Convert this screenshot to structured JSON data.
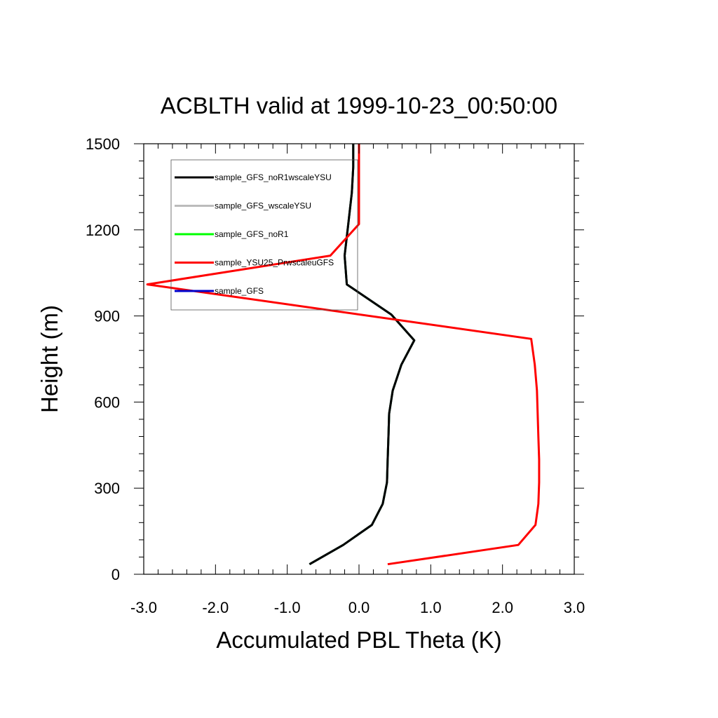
{
  "chart_data": {
    "type": "line",
    "title": "ACBLTH valid at 1999-10-23_00:50:00",
    "xlabel": "Accumulated PBL Theta (K)",
    "ylabel": "Height (m)",
    "xlim": [
      -3.0,
      3.0
    ],
    "ylim": [
      0,
      1500
    ],
    "x_ticks": [
      -3.0,
      -2.0,
      -1.0,
      0.0,
      1.0,
      2.0,
      3.0
    ],
    "x_tick_labels": [
      "-3.0",
      "-2.0",
      "-1.0",
      "0.0",
      "1.0",
      "2.0",
      "3.0"
    ],
    "y_ticks": [
      0,
      300,
      600,
      900,
      1200,
      1500
    ],
    "y_tick_labels": [
      "0",
      "300",
      "600",
      "900",
      "1200",
      "1500"
    ],
    "grid": false,
    "legend_position": "top-left",
    "series": [
      {
        "name": "sample_GFS_noR1wscaleYSU",
        "color": "#000000",
        "points": [
          [
            -0.69,
            35
          ],
          [
            -0.22,
            102
          ],
          [
            0.18,
            172
          ],
          [
            0.33,
            245
          ],
          [
            0.39,
            320
          ],
          [
            0.4,
            400
          ],
          [
            0.41,
            480
          ],
          [
            0.42,
            560
          ],
          [
            0.47,
            640
          ],
          [
            0.59,
            730
          ],
          [
            0.77,
            815
          ],
          [
            0.45,
            905
          ],
          [
            -0.17,
            1010
          ],
          [
            -0.2,
            1110
          ],
          [
            -0.15,
            1220
          ],
          [
            -0.1,
            1330
          ],
          [
            -0.08,
            1420
          ],
          [
            -0.08,
            1500
          ]
        ]
      },
      {
        "name": "sample_GFS_wscaleYSU",
        "color": "#bbbbbb",
        "points": [
          [
            -0.69,
            35
          ],
          [
            -0.22,
            102
          ],
          [
            0.18,
            172
          ],
          [
            0.33,
            245
          ],
          [
            0.39,
            320
          ],
          [
            0.4,
            400
          ],
          [
            0.41,
            480
          ],
          [
            0.42,
            560
          ],
          [
            0.47,
            640
          ],
          [
            0.59,
            730
          ],
          [
            0.77,
            815
          ],
          [
            0.45,
            905
          ],
          [
            -0.17,
            1010
          ],
          [
            -0.2,
            1110
          ],
          [
            -0.15,
            1220
          ],
          [
            -0.1,
            1330
          ],
          [
            -0.08,
            1420
          ],
          [
            -0.08,
            1500
          ]
        ]
      },
      {
        "name": "sample_GFS_noR1",
        "color": "#00ff00",
        "points": [
          [
            -0.69,
            35
          ],
          [
            -0.22,
            102
          ],
          [
            0.18,
            172
          ],
          [
            0.33,
            245
          ],
          [
            0.39,
            320
          ],
          [
            0.4,
            400
          ],
          [
            0.41,
            480
          ],
          [
            0.42,
            560
          ],
          [
            0.47,
            640
          ],
          [
            0.59,
            730
          ],
          [
            0.77,
            815
          ],
          [
            0.45,
            905
          ],
          [
            -0.17,
            1010
          ],
          [
            -0.2,
            1110
          ],
          [
            -0.15,
            1220
          ],
          [
            -0.1,
            1330
          ],
          [
            -0.08,
            1420
          ],
          [
            -0.08,
            1500
          ]
        ]
      },
      {
        "name": "sample_YSU25_PrwscaleuGFS",
        "color": "#ff0000",
        "points": [
          [
            0.4,
            35
          ],
          [
            2.22,
            102
          ],
          [
            2.46,
            172
          ],
          [
            2.5,
            245
          ],
          [
            2.51,
            320
          ],
          [
            2.51,
            400
          ],
          [
            2.5,
            480
          ],
          [
            2.49,
            560
          ],
          [
            2.48,
            640
          ],
          [
            2.45,
            730
          ],
          [
            2.4,
            820
          ],
          [
            -2.95,
            1010
          ],
          [
            -0.4,
            1110
          ],
          [
            0.0,
            1220
          ],
          [
            0.0,
            1330
          ],
          [
            0.0,
            1420
          ],
          [
            0.0,
            1500
          ]
        ]
      },
      {
        "name": "sample_GFS",
        "color": "#0000cc",
        "points": [
          [
            -0.69,
            35
          ],
          [
            -0.22,
            102
          ],
          [
            0.18,
            172
          ],
          [
            0.33,
            245
          ],
          [
            0.39,
            320
          ],
          [
            0.4,
            400
          ],
          [
            0.41,
            480
          ],
          [
            0.42,
            560
          ],
          [
            0.47,
            640
          ],
          [
            0.59,
            730
          ],
          [
            0.77,
            815
          ],
          [
            0.45,
            905
          ],
          [
            -0.17,
            1010
          ],
          [
            -0.2,
            1110
          ],
          [
            -0.15,
            1220
          ],
          [
            -0.1,
            1330
          ],
          [
            -0.08,
            1420
          ],
          [
            -0.08,
            1500
          ]
        ]
      }
    ],
    "draw_order": [
      4,
      2,
      1,
      0,
      3
    ]
  }
}
